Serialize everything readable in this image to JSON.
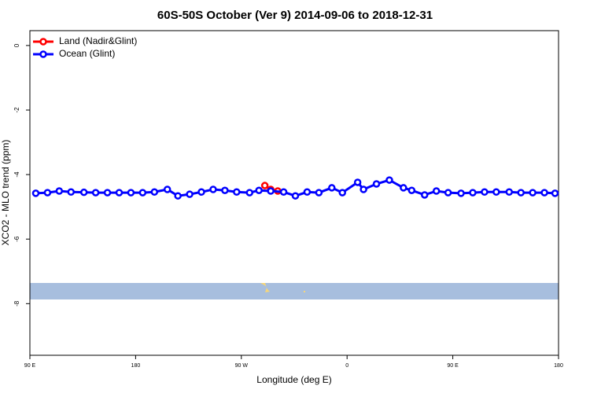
{
  "chart_data": {
    "type": "line",
    "title": "60S-50S October (Ver 9)   2014-09-06 to 2018-12-31",
    "x_label": "Longitude (deg E)",
    "y_label": "XCO2 - MLO trend (ppm)",
    "xlim": [
      90,
      540
    ],
    "xticks": [
      {
        "value": 90,
        "label": "90 E"
      },
      180,
      {
        "value": 270,
        "label": "90 W"
      },
      {
        "value": 360,
        "label": "0"
      },
      {
        "value": 450,
        "label": "90 E"
      },
      {
        "value": 540,
        "label": "180"
      }
    ],
    "ylim": [
      -9.6,
      0.46
    ],
    "yticks": [
      0,
      -2,
      -4,
      -6,
      -8
    ],
    "legend": "top-left",
    "series": [
      {
        "name": "Land (Nadir&Glint)",
        "color": "#ff0000",
        "x": [
          290,
          295,
          301
        ],
        "values": [
          -4.34,
          -4.46,
          -4.51
        ]
      },
      {
        "name": "Ocean (Glint)",
        "color": "#0000ff",
        "x": [
          95,
          105,
          115,
          125,
          136,
          146,
          156,
          166,
          176,
          186,
          196,
          207,
          216,
          226,
          236,
          246,
          256,
          266,
          277,
          285,
          295,
          306,
          316,
          326,
          336,
          347,
          356,
          369,
          374,
          385,
          396,
          408,
          415,
          426,
          436,
          446,
          457,
          467,
          477,
          487,
          498,
          508,
          518,
          528,
          537
        ],
        "values": [
          -4.58,
          -4.56,
          -4.51,
          -4.54,
          -4.55,
          -4.56,
          -4.56,
          -4.56,
          -4.56,
          -4.56,
          -4.54,
          -4.46,
          -4.66,
          -4.61,
          -4.54,
          -4.46,
          -4.49,
          -4.54,
          -4.56,
          -4.49,
          -4.51,
          -4.54,
          -4.66,
          -4.54,
          -4.56,
          -4.41,
          -4.56,
          -4.24,
          -4.46,
          -4.29,
          -4.17,
          -4.41,
          -4.49,
          -4.63,
          -4.51,
          -4.56,
          -4.58,
          -4.56,
          -4.54,
          -4.54,
          -4.54,
          -4.56,
          -4.56,
          -4.56,
          -4.58
        ]
      }
    ]
  }
}
